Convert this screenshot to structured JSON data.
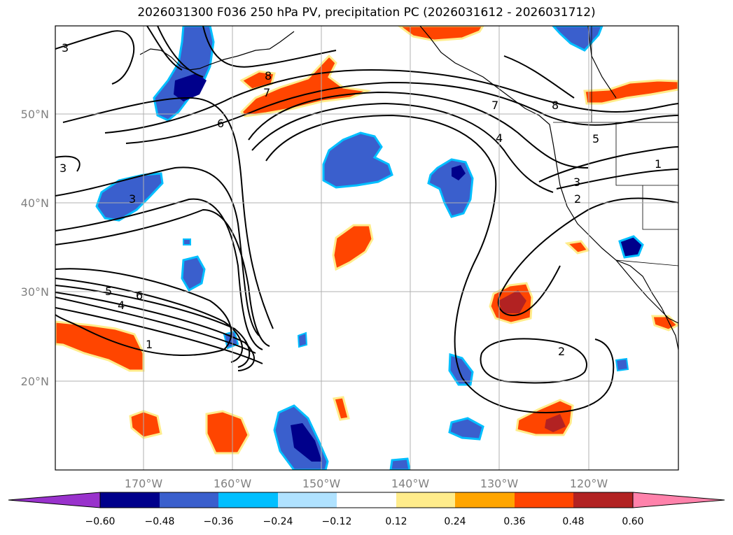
{
  "title": "2026031300 F036 250 hPa PV, precipitation PC (2026031612 - 2026031712)",
  "lon_ticks": [
    "170°W",
    "160°W",
    "150°W",
    "140°W",
    "130°W",
    "120°W"
  ],
  "lat_ticks": [
    "50°N",
    "40°N",
    "30°N",
    "20°N"
  ],
  "colorbar": {
    "tick_labels": [
      "−0.60",
      "−0.48",
      "−0.36",
      "−0.24",
      "−0.12",
      "0.12",
      "0.24",
      "0.36",
      "0.48",
      "0.60"
    ],
    "colors": [
      "#9932cc",
      "#00008b",
      "#3a5fcd",
      "#00bfff",
      "#b0e2ff",
      "#ffffff",
      "#ffec8b",
      "#ffa500",
      "#ff4500",
      "#b22222",
      "#ff82ab"
    ]
  },
  "pv_contour_labels": [
    "3",
    "8",
    "7",
    "6",
    "3",
    "8",
    "7",
    "4",
    "5",
    "1",
    "3",
    "2",
    "3",
    "5",
    "4",
    "6",
    "1",
    "2"
  ],
  "colors": {
    "neg_mid": "#3a5fcd",
    "neg_strong": "#00008b",
    "pos_mid": "#ff4500",
    "pos_strong": "#b22222",
    "grid": "#b0b0b0",
    "contour": "#000000"
  }
}
